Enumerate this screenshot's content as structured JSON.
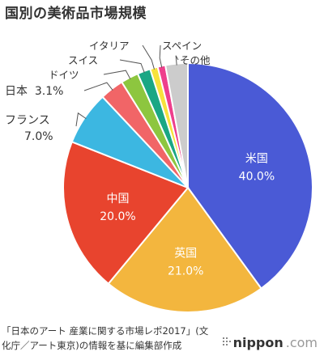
{
  "title": "国別の美術品市場規模",
  "source_line1": "「日本のアート 産業に関する市場レポ2017」(文",
  "source_line2": "化庁／アート東京)の情報を基に編集部作成",
  "brand": {
    "main": "nippon",
    "suffix": ".com"
  },
  "chart_data": {
    "type": "pie",
    "title": "国別の美術品市場規模",
    "slices": [
      {
        "label": "米国",
        "value": 40.0,
        "value_label": "40.0%",
        "color": "#4a5ad6",
        "label_position": "inside"
      },
      {
        "label": "英国",
        "value": 21.0,
        "value_label": "21.0%",
        "color": "#f3b63e",
        "label_position": "inside"
      },
      {
        "label": "中国",
        "value": 20.0,
        "value_label": "20.0%",
        "color": "#e8442e",
        "label_position": "inside"
      },
      {
        "label": "フランス",
        "value": 7.0,
        "value_label": "7.0%",
        "color": "#3cb7e1",
        "label_position": "outside"
      },
      {
        "label": "日本",
        "value": 3.1,
        "value_label": "3.1%",
        "color": "#f16567",
        "label_position": "outside"
      },
      {
        "label": "ドイツ",
        "value": 2.3,
        "value_label": "",
        "color": "#8dc63f",
        "label_position": "outside"
      },
      {
        "label": "スイス",
        "value": 1.7,
        "value_label": "",
        "color": "#1aa784",
        "label_position": "outside"
      },
      {
        "label": "イタリア",
        "value": 1.0,
        "value_label": "",
        "color": "#f7e23c",
        "label_position": "outside"
      },
      {
        "label": "スペイン",
        "value": 1.0,
        "value_label": "",
        "color": "#ee3f8c",
        "label_position": "outside"
      },
      {
        "label": "その他",
        "value": 2.9,
        "value_label": "",
        "color": "#cccccc",
        "label_position": "outside"
      }
    ]
  }
}
